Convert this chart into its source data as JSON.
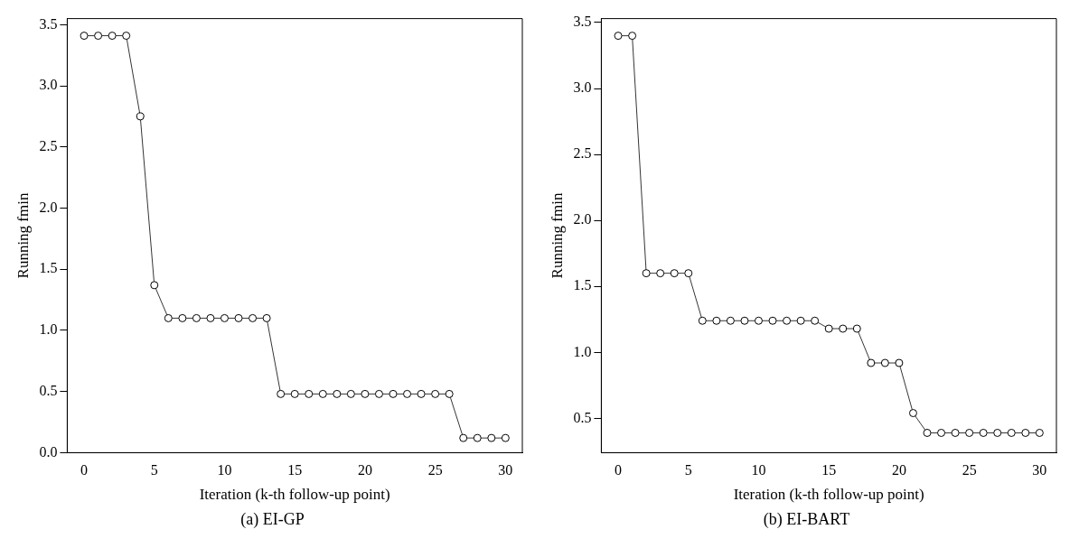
{
  "chart_data": [
    {
      "type": "line",
      "title": "(a) EI-GP",
      "xlabel": "Iteration (k-th follow-up point)",
      "ylabel": "Running fmin",
      "x": [
        0,
        1,
        2,
        3,
        4,
        5,
        6,
        7,
        8,
        9,
        10,
        11,
        12,
        13,
        14,
        15,
        16,
        17,
        18,
        19,
        20,
        21,
        22,
        23,
        24,
        25,
        26,
        27,
        28,
        29,
        30
      ],
      "series": [
        {
          "color": "#000000",
          "values": [
            3.41,
            3.41,
            3.41,
            3.41,
            2.75,
            1.37,
            1.1,
            1.1,
            1.1,
            1.1,
            1.1,
            1.1,
            1.1,
            1.1,
            0.48,
            0.48,
            0.48,
            0.48,
            0.48,
            0.48,
            0.48,
            0.48,
            0.48,
            0.48,
            0.48,
            0.48,
            0.48,
            0.12,
            0.12,
            0.12,
            0.12
          ]
        }
      ],
      "xlim": [
        -1.2,
        31.2
      ],
      "xticks": [
        0,
        5,
        10,
        15,
        20,
        25,
        30
      ],
      "ylim": [
        0,
        3.55
      ],
      "yticks": [
        {
          "value": 0,
          "label": "0.0"
        },
        {
          "value": 0.5,
          "label": "0.5"
        },
        {
          "value": 1,
          "label": "1.0"
        },
        {
          "value": 1.5,
          "label": "1.5"
        },
        {
          "value": 2,
          "label": "2.0"
        },
        {
          "value": 2.5,
          "label": "2.5"
        },
        {
          "value": 3,
          "label": "3.0"
        },
        {
          "value": 3.5,
          "label": "3.5"
        }
      ],
      "grid": false,
      "legend": false,
      "marker": "circle",
      "line_style": "solid"
    },
    {
      "type": "line",
      "title": "(b) EI-BART",
      "xlabel": "Iteration (k-th follow-up point)",
      "ylabel": "Running fmin",
      "x": [
        0,
        1,
        2,
        3,
        4,
        5,
        6,
        7,
        8,
        9,
        10,
        11,
        12,
        13,
        14,
        15,
        16,
        17,
        18,
        19,
        20,
        21,
        22,
        23,
        24,
        25,
        26,
        27,
        28,
        29,
        30
      ],
      "series": [
        {
          "color": "#000000",
          "values": [
            3.4,
            3.4,
            1.6,
            1.6,
            1.6,
            1.6,
            1.24,
            1.24,
            1.24,
            1.24,
            1.24,
            1.24,
            1.24,
            1.24,
            1.24,
            1.18,
            1.18,
            1.18,
            0.92,
            0.92,
            0.92,
            0.54,
            0.39,
            0.39,
            0.39,
            0.39,
            0.39,
            0.39,
            0.39,
            0.39,
            0.39
          ]
        }
      ],
      "xlim": [
        -1.2,
        31.2
      ],
      "xticks": [
        0,
        5,
        10,
        15,
        20,
        25,
        30
      ],
      "ylim": [
        0.24,
        3.53
      ],
      "yticks": [
        {
          "value": 0.5,
          "label": "0.5"
        },
        {
          "value": 1,
          "label": "1.0"
        },
        {
          "value": 1.5,
          "label": "1.5"
        },
        {
          "value": 2,
          "label": "2.0"
        },
        {
          "value": 2.5,
          "label": "2.5"
        },
        {
          "value": 3,
          "label": "3.0"
        },
        {
          "value": 3.5,
          "label": "3.5"
        }
      ],
      "grid": false,
      "legend": false,
      "marker": "circle",
      "line_style": "solid"
    }
  ]
}
